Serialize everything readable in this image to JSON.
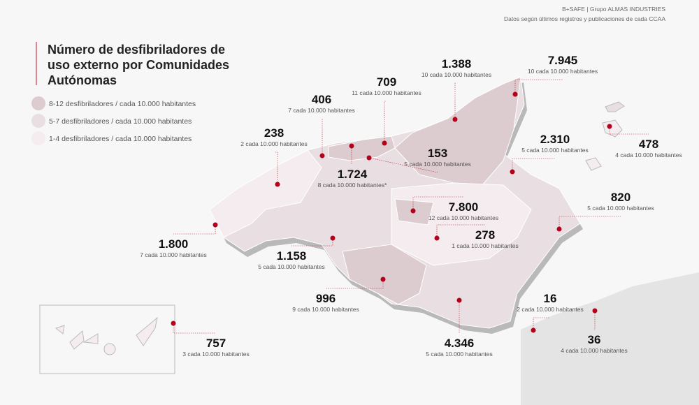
{
  "source": [
    "B+SAFE | Grupo ALMAS INDUSTRIES",
    "Datos según últimos registros y publicaciones de cada CCAA"
  ],
  "title": "Número de desfibriladores de uso externo por Comunidades Autónomas",
  "legend": [
    {
      "label": "8-12 desfibriladores / cada 10.000 habitantes",
      "color": "#dccbcf"
    },
    {
      "label": "5-7 desfibriladores / cada 10.000 habitantes",
      "color": "#e9dfe2"
    },
    {
      "label": "1-4 desfibriladores / cada 10.000 habitantes",
      "color": "#f4ecee"
    }
  ],
  "regions": [
    {
      "count": "1.388",
      "rate": "10 cada 10.000 habitantes"
    },
    {
      "count": "7.945",
      "rate": "10 cada 10.000 habitantes"
    },
    {
      "count": "709",
      "rate": "11 cada 10.000 habitantes"
    },
    {
      "count": "406",
      "rate": "7 cada 10.000 habitantes"
    },
    {
      "count": "238",
      "rate": "2 cada 10.000 habitantes"
    },
    {
      "count": "153",
      "rate": "5 cada 10.000 habitantes"
    },
    {
      "count": "1.724",
      "rate": "8 cada 10.000 habitantes*"
    },
    {
      "count": "2.310",
      "rate": "5 cada 10.000 habitantes"
    },
    {
      "count": "478",
      "rate": "4 cada 10.000 habitantes"
    },
    {
      "count": "820",
      "rate": "5 cada 10.000 habitantes"
    },
    {
      "count": "7.800",
      "rate": "12 cada 10.000 habitantes"
    },
    {
      "count": "278",
      "rate": "1 cada 10.000 habitantes"
    },
    {
      "count": "1.800",
      "rate": "7 cada 10.000 habitantes"
    },
    {
      "count": "1.158",
      "rate": "5 cada 10.000 habitantes"
    },
    {
      "count": "996",
      "rate": "9 cada 10.000 habitantes"
    },
    {
      "count": "4.346",
      "rate": "5 cada 10.000 habitantes"
    },
    {
      "count": "16",
      "rate": "2 cada 10.000 habitantes"
    },
    {
      "count": "36",
      "rate": "4 cada 10.000 habitantes"
    },
    {
      "count": "757",
      "rate": "3 cada 10.000 habitantes"
    }
  ]
}
